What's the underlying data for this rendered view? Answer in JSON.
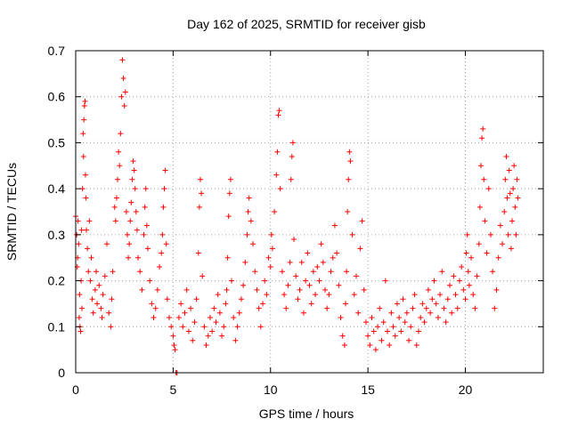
{
  "chart_data": {
    "type": "scatter",
    "title": "Day 162 of 2025, SRMTID for receiver gisb",
    "xlabel": "GPS time / hours",
    "ylabel": "SRMTID / TECUs",
    "xlim": [
      0,
      24
    ],
    "ylim": [
      0,
      0.7
    ],
    "xticks": [
      "0",
      "5",
      "10",
      "15",
      "20"
    ],
    "yticks": [
      "0",
      "0.1",
      "0.2",
      "0.3",
      "0.4",
      "0.5",
      "0.6",
      "0.7"
    ],
    "grid": true,
    "marker": "plus",
    "color": "#ff0000",
    "series": [
      {
        "name": "SRMTID",
        "points": [
          [
            0.0,
            0.34
          ],
          [
            0.05,
            0.3
          ],
          [
            0.08,
            0.23
          ],
          [
            0.1,
            0.25
          ],
          [
            0.12,
            0.33
          ],
          [
            0.15,
            0.28
          ],
          [
            0.18,
            0.12
          ],
          [
            0.2,
            0.17
          ],
          [
            0.22,
            0.1
          ],
          [
            0.25,
            0.09
          ],
          [
            0.28,
            0.2
          ],
          [
            0.3,
            0.31
          ],
          [
            0.32,
            0.14
          ],
          [
            0.35,
            0.4
          ],
          [
            0.38,
            0.52
          ],
          [
            0.4,
            0.47
          ],
          [
            0.42,
            0.55
          ],
          [
            0.45,
            0.58
          ],
          [
            0.48,
            0.59
          ],
          [
            0.5,
            0.43
          ],
          [
            0.52,
            0.38
          ],
          [
            0.55,
            0.31
          ],
          [
            0.6,
            0.27
          ],
          [
            0.65,
            0.22
          ],
          [
            0.7,
            0.33
          ],
          [
            0.75,
            0.2
          ],
          [
            0.8,
            0.25
          ],
          [
            0.85,
            0.16
          ],
          [
            0.9,
            0.13
          ],
          [
            1.0,
            0.18
          ],
          [
            1.05,
            0.22
          ],
          [
            1.1,
            0.15
          ],
          [
            1.2,
            0.19
          ],
          [
            1.3,
            0.14
          ],
          [
            1.35,
            0.12
          ],
          [
            1.4,
            0.17
          ],
          [
            1.5,
            0.21
          ],
          [
            1.6,
            0.28
          ],
          [
            1.7,
            0.13
          ],
          [
            1.8,
            0.1
          ],
          [
            1.85,
            0.16
          ],
          [
            1.9,
            0.22
          ],
          [
            2.0,
            0.36
          ],
          [
            2.05,
            0.33
          ],
          [
            2.1,
            0.38
          ],
          [
            2.15,
            0.42
          ],
          [
            2.2,
            0.48
          ],
          [
            2.25,
            0.45
          ],
          [
            2.3,
            0.52
          ],
          [
            2.35,
            0.6
          ],
          [
            2.4,
            0.68
          ],
          [
            2.45,
            0.64
          ],
          [
            2.5,
            0.58
          ],
          [
            2.55,
            0.61
          ],
          [
            2.6,
            0.35
          ],
          [
            2.65,
            0.3
          ],
          [
            2.7,
            0.25
          ],
          [
            2.75,
            0.28
          ],
          [
            2.8,
            0.33
          ],
          [
            2.85,
            0.37
          ],
          [
            2.9,
            0.42
          ],
          [
            2.95,
            0.46
          ],
          [
            3.0,
            0.44
          ],
          [
            3.05,
            0.4
          ],
          [
            3.1,
            0.35
          ],
          [
            3.15,
            0.31
          ],
          [
            3.2,
            0.25
          ],
          [
            3.3,
            0.22
          ],
          [
            3.4,
            0.18
          ],
          [
            3.5,
            0.3
          ],
          [
            3.55,
            0.36
          ],
          [
            3.6,
            0.4
          ],
          [
            3.65,
            0.32
          ],
          [
            3.7,
            0.27
          ],
          [
            3.8,
            0.2
          ],
          [
            3.9,
            0.15
          ],
          [
            4.0,
            0.12
          ],
          [
            4.1,
            0.14
          ],
          [
            4.2,
            0.18
          ],
          [
            4.3,
            0.23
          ],
          [
            4.4,
            0.26
          ],
          [
            4.45,
            0.3
          ],
          [
            4.5,
            0.36
          ],
          [
            4.55,
            0.4
          ],
          [
            4.6,
            0.44
          ],
          [
            4.65,
            0.28
          ],
          [
            4.7,
            0.16
          ],
          [
            4.8,
            0.12
          ],
          [
            4.9,
            0.1
          ],
          [
            5.0,
            0.08
          ],
          [
            5.05,
            0.06
          ],
          [
            5.1,
            0.05
          ],
          [
            5.15,
            0.0
          ],
          [
            5.2,
            0.0
          ],
          [
            5.3,
            0.12
          ],
          [
            5.4,
            0.15
          ],
          [
            5.5,
            0.1
          ],
          [
            5.6,
            0.13
          ],
          [
            5.7,
            0.18
          ],
          [
            5.8,
            0.09
          ],
          [
            5.9,
            0.14
          ],
          [
            6.0,
            0.07
          ],
          [
            6.1,
            0.11
          ],
          [
            6.2,
            0.16
          ],
          [
            6.3,
            0.26
          ],
          [
            6.35,
            0.36
          ],
          [
            6.4,
            0.42
          ],
          [
            6.45,
            0.39
          ],
          [
            6.5,
            0.21
          ],
          [
            6.6,
            0.1
          ],
          [
            6.7,
            0.06
          ],
          [
            6.8,
            0.08
          ],
          [
            6.9,
            0.12
          ],
          [
            7.0,
            0.09
          ],
          [
            7.1,
            0.14
          ],
          [
            7.2,
            0.11
          ],
          [
            7.3,
            0.17
          ],
          [
            7.4,
            0.13
          ],
          [
            7.5,
            0.08
          ],
          [
            7.6,
            0.1
          ],
          [
            7.7,
            0.15
          ],
          [
            7.75,
            0.18
          ],
          [
            7.8,
            0.25
          ],
          [
            7.85,
            0.34
          ],
          [
            7.9,
            0.39
          ],
          [
            7.95,
            0.42
          ],
          [
            8.0,
            0.2
          ],
          [
            8.1,
            0.12
          ],
          [
            8.2,
            0.07
          ],
          [
            8.3,
            0.1
          ],
          [
            8.4,
            0.13
          ],
          [
            8.5,
            0.16
          ],
          [
            8.6,
            0.19
          ],
          [
            8.7,
            0.24
          ],
          [
            8.8,
            0.3
          ],
          [
            8.85,
            0.35
          ],
          [
            8.9,
            0.38
          ],
          [
            9.0,
            0.33
          ],
          [
            9.1,
            0.28
          ],
          [
            9.2,
            0.22
          ],
          [
            9.3,
            0.18
          ],
          [
            9.4,
            0.14
          ],
          [
            9.5,
            0.1
          ],
          [
            9.6,
            0.15
          ],
          [
            9.7,
            0.2
          ],
          [
            9.8,
            0.17
          ],
          [
            9.9,
            0.25
          ],
          [
            10.0,
            0.23
          ],
          [
            10.05,
            0.3
          ],
          [
            10.1,
            0.27
          ],
          [
            10.2,
            0.35
          ],
          [
            10.3,
            0.43
          ],
          [
            10.35,
            0.48
          ],
          [
            10.4,
            0.56
          ],
          [
            10.45,
            0.57
          ],
          [
            10.5,
            0.4
          ],
          [
            10.6,
            0.22
          ],
          [
            10.7,
            0.17
          ],
          [
            10.8,
            0.14
          ],
          [
            10.9,
            0.19
          ],
          [
            11.0,
            0.24
          ],
          [
            11.05,
            0.42
          ],
          [
            11.1,
            0.47
          ],
          [
            11.15,
            0.5
          ],
          [
            11.2,
            0.29
          ],
          [
            11.3,
            0.21
          ],
          [
            11.4,
            0.16
          ],
          [
            11.5,
            0.18
          ],
          [
            11.6,
            0.24
          ],
          [
            11.7,
            0.13
          ],
          [
            11.8,
            0.2
          ],
          [
            11.9,
            0.26
          ],
          [
            12.0,
            0.19
          ],
          [
            12.1,
            0.15
          ],
          [
            12.2,
            0.22
          ],
          [
            12.3,
            0.17
          ],
          [
            12.4,
            0.23
          ],
          [
            12.5,
            0.2
          ],
          [
            12.6,
            0.28
          ],
          [
            12.7,
            0.24
          ],
          [
            12.8,
            0.18
          ],
          [
            12.9,
            0.14
          ],
          [
            13.0,
            0.17
          ],
          [
            13.1,
            0.22
          ],
          [
            13.2,
            0.25
          ],
          [
            13.3,
            0.32
          ],
          [
            13.4,
            0.26
          ],
          [
            13.5,
            0.19
          ],
          [
            13.6,
            0.12
          ],
          [
            13.7,
            0.08
          ],
          [
            13.8,
            0.06
          ],
          [
            13.85,
            0.15
          ],
          [
            13.9,
            0.22
          ],
          [
            13.95,
            0.35
          ],
          [
            14.0,
            0.42
          ],
          [
            14.05,
            0.48
          ],
          [
            14.1,
            0.46
          ],
          [
            14.2,
            0.3
          ],
          [
            14.3,
            0.17
          ],
          [
            14.4,
            0.21
          ],
          [
            14.5,
            0.13
          ],
          [
            14.6,
            0.27
          ],
          [
            14.7,
            0.33
          ],
          [
            14.8,
            0.18
          ],
          [
            14.9,
            0.11
          ],
          [
            15.0,
            0.08
          ],
          [
            15.1,
            0.06
          ],
          [
            15.2,
            0.12
          ],
          [
            15.3,
            0.09
          ],
          [
            15.4,
            0.05
          ],
          [
            15.5,
            0.1
          ],
          [
            15.6,
            0.14
          ],
          [
            15.7,
            0.07
          ],
          [
            15.8,
            0.11
          ],
          [
            15.9,
            0.2
          ],
          [
            16.0,
            0.09
          ],
          [
            16.1,
            0.06
          ],
          [
            16.2,
            0.13
          ],
          [
            16.3,
            0.1
          ],
          [
            16.4,
            0.08
          ],
          [
            16.5,
            0.15
          ],
          [
            16.6,
            0.12
          ],
          [
            16.7,
            0.09
          ],
          [
            16.8,
            0.16
          ],
          [
            16.9,
            0.11
          ],
          [
            17.0,
            0.13
          ],
          [
            17.1,
            0.07
          ],
          [
            17.2,
            0.1
          ],
          [
            17.3,
            0.14
          ],
          [
            17.4,
            0.17
          ],
          [
            17.5,
            0.06
          ],
          [
            17.6,
            0.09
          ],
          [
            17.7,
            0.12
          ],
          [
            17.8,
            0.15
          ],
          [
            17.9,
            0.11
          ],
          [
            18.0,
            0.14
          ],
          [
            18.1,
            0.18
          ],
          [
            18.2,
            0.13
          ],
          [
            18.3,
            0.16
          ],
          [
            18.4,
            0.2
          ],
          [
            18.5,
            0.15
          ],
          [
            18.6,
            0.12
          ],
          [
            18.7,
            0.17
          ],
          [
            18.8,
            0.22
          ],
          [
            18.9,
            0.14
          ],
          [
            19.0,
            0.11
          ],
          [
            19.1,
            0.16
          ],
          [
            19.2,
            0.19
          ],
          [
            19.3,
            0.13
          ],
          [
            19.4,
            0.21
          ],
          [
            19.5,
            0.17
          ],
          [
            19.6,
            0.14
          ],
          [
            19.7,
            0.2
          ],
          [
            19.8,
            0.23
          ],
          [
            19.9,
            0.18
          ],
          [
            20.0,
            0.16
          ],
          [
            20.05,
            0.26
          ],
          [
            20.1,
            0.3
          ],
          [
            20.15,
            0.22
          ],
          [
            20.2,
            0.19
          ],
          [
            20.3,
            0.25
          ],
          [
            20.4,
            0.17
          ],
          [
            20.5,
            0.14
          ],
          [
            20.6,
            0.21
          ],
          [
            20.7,
            0.28
          ],
          [
            20.75,
            0.36
          ],
          [
            20.8,
            0.45
          ],
          [
            20.85,
            0.51
          ],
          [
            20.9,
            0.53
          ],
          [
            20.95,
            0.42
          ],
          [
            21.0,
            0.33
          ],
          [
            21.1,
            0.26
          ],
          [
            21.2,
            0.4
          ],
          [
            21.3,
            0.3
          ],
          [
            21.4,
            0.22
          ],
          [
            21.5,
            0.14
          ],
          [
            21.6,
            0.18
          ],
          [
            21.7,
            0.25
          ],
          [
            21.8,
            0.32
          ],
          [
            21.9,
            0.28
          ],
          [
            22.0,
            0.35
          ],
          [
            22.05,
            0.42
          ],
          [
            22.1,
            0.47
          ],
          [
            22.15,
            0.38
          ],
          [
            22.2,
            0.3
          ],
          [
            22.25,
            0.44
          ],
          [
            22.3,
            0.39
          ],
          [
            22.35,
            0.27
          ],
          [
            22.4,
            0.33
          ],
          [
            22.45,
            0.4
          ],
          [
            22.5,
            0.45
          ],
          [
            22.55,
            0.36
          ],
          [
            22.6,
            0.3
          ],
          [
            22.65,
            0.42
          ],
          [
            22.7,
            0.38
          ]
        ]
      }
    ]
  }
}
